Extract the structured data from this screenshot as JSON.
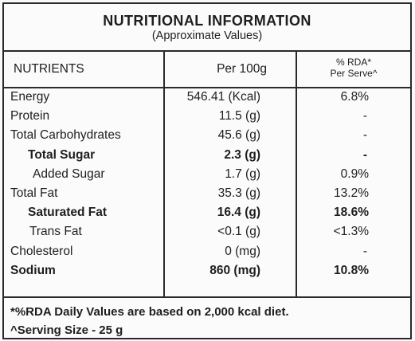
{
  "header": {
    "title": "NUTRITIONAL INFORMATION",
    "subtitle": "(Approximate Values)"
  },
  "columns": {
    "nutrients": "NUTRIENTS",
    "per_100g": "Per 100g",
    "rda_line1": "% RDA*",
    "rda_line2": "Per Serve^"
  },
  "rows": [
    {
      "name": "Energy",
      "value": "546.41 (Kcal)",
      "rda": "6.8%"
    },
    {
      "name": "Protein",
      "value": "11.5 (g)",
      "rda": "-"
    },
    {
      "name": "Total Carbohydrates",
      "value": "45.6 (g)",
      "rda": "-"
    },
    {
      "name": "Total Sugar",
      "value": "2.3 (g)",
      "rda": "-"
    },
    {
      "name": "Added Sugar",
      "value": "1.7 (g)",
      "rda": "0.9%"
    },
    {
      "name": "Total Fat",
      "value": "35.3 (g)",
      "rda": "13.2%"
    },
    {
      "name": "Saturated Fat",
      "value": "16.4 (g)",
      "rda": "18.6%"
    },
    {
      "name": "Trans Fat",
      "value": "<0.1 (g)",
      "rda": "<1.3%"
    },
    {
      "name": "Cholesterol",
      "value": "0 (mg)",
      "rda": "-"
    },
    {
      "name": "Sodium",
      "value": "860 (mg)",
      "rda": "10.8%"
    }
  ],
  "footer": {
    "note1": "*%RDA Daily Values are based on 2,000 kcal diet.",
    "note2": "^Serving Size - 25 g"
  }
}
